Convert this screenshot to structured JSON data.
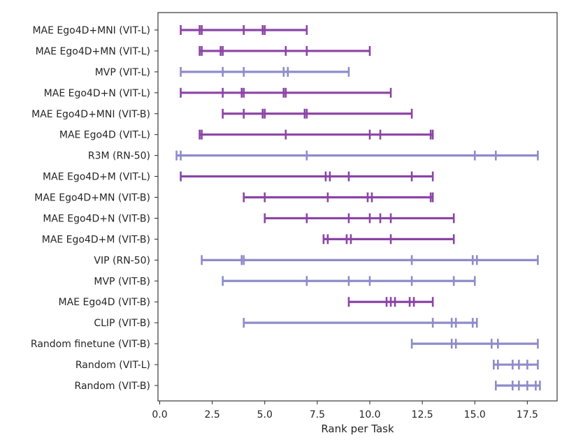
{
  "chart_data": {
    "type": "range-dot",
    "title": "",
    "xlabel": "Rank per Task",
    "ylabel": "",
    "xlim": [
      0,
      19
    ],
    "xticks": [
      0.0,
      2.5,
      5.0,
      7.5,
      10.0,
      12.5,
      15.0,
      17.5
    ],
    "xtick_labels": [
      "0.0",
      "2.5",
      "5.0",
      "7.5",
      "10.0",
      "12.5",
      "15.0",
      "17.5"
    ],
    "grid": false,
    "legend": "none",
    "colors": {
      "mae": "#8b44a6",
      "baseline": "#8e8cc9"
    },
    "rows": [
      {
        "label": "MAE Ego4D+MNI (VIT-L)",
        "group": "mae",
        "ranks": [
          1,
          1.9,
          2.0,
          4.0,
          4.9,
          5.0,
          7.0
        ]
      },
      {
        "label": "MAE Ego4D+MN (VIT-L)",
        "group": "mae",
        "ranks": [
          1.9,
          2.0,
          2.9,
          3.0,
          6.0,
          7.0,
          10.0
        ]
      },
      {
        "label": "MVP (VIT-L)",
        "group": "baseline",
        "ranks": [
          1,
          3.0,
          4.0,
          5.9,
          6.1,
          9.0
        ]
      },
      {
        "label": "MAE Ego4D+N (VIT-L)",
        "group": "mae",
        "ranks": [
          1,
          3.0,
          3.9,
          4.0,
          5.9,
          6.0,
          11.0
        ]
      },
      {
        "label": "MAE Ego4D+MNI (VIT-B)",
        "group": "mae",
        "ranks": [
          3.0,
          4.0,
          4.9,
          5.0,
          6.9,
          7.0,
          12.0
        ]
      },
      {
        "label": "MAE Ego4D (VIT-L)",
        "group": "mae",
        "ranks": [
          1.9,
          2.0,
          6.0,
          10.0,
          10.5,
          12.9,
          13.0
        ]
      },
      {
        "label": "R3M (RN-50)",
        "group": "baseline",
        "ranks": [
          0.8,
          1.0,
          7.0,
          15.0,
          16.0,
          18.0
        ]
      },
      {
        "label": "MAE Ego4D+M (VIT-L)",
        "group": "mae",
        "ranks": [
          1,
          7.9,
          8.1,
          9.0,
          12.0,
          13.0
        ]
      },
      {
        "label": "MAE Ego4D+MN (VIT-B)",
        "group": "mae",
        "ranks": [
          4.0,
          5.0,
          8.0,
          9.9,
          10.1,
          12.9,
          13.0
        ]
      },
      {
        "label": "MAE Ego4D+N (VIT-B)",
        "group": "mae",
        "ranks": [
          5.0,
          7.0,
          9.0,
          10.0,
          10.5,
          11.0,
          14.0
        ]
      },
      {
        "label": "MAE Ego4D+M (VIT-B)",
        "group": "mae",
        "ranks": [
          7.8,
          8.0,
          8.9,
          9.1,
          11.0,
          14.0
        ]
      },
      {
        "label": "VIP (RN-50)",
        "group": "baseline",
        "ranks": [
          2.0,
          3.9,
          4.0,
          12.0,
          14.9,
          15.1,
          18.0
        ]
      },
      {
        "label": "MVP (VIT-B)",
        "group": "baseline",
        "ranks": [
          3.0,
          7.0,
          9.0,
          10.0,
          12.0,
          14.0,
          15.0
        ]
      },
      {
        "label": "MAE Ego4D (VIT-B)",
        "group": "mae",
        "ranks": [
          9.0,
          10.8,
          11.0,
          11.2,
          11.9,
          12.1,
          13.0
        ]
      },
      {
        "label": "CLIP (VIT-B)",
        "group": "baseline",
        "ranks": [
          4.0,
          13.0,
          13.9,
          14.1,
          14.9,
          15.1
        ]
      },
      {
        "label": "Random finetune (VIT-B)",
        "group": "baseline",
        "ranks": [
          12.0,
          13.9,
          14.1,
          15.8,
          16.1,
          18.0
        ]
      },
      {
        "label": "Random (VIT-L)",
        "group": "baseline",
        "ranks": [
          15.9,
          16.1,
          16.8,
          17.1,
          17.5,
          18.0
        ]
      },
      {
        "label": "Random (VIT-B)",
        "group": "baseline",
        "ranks": [
          16.0,
          16.8,
          17.1,
          17.5,
          17.9,
          18.1
        ]
      }
    ]
  }
}
